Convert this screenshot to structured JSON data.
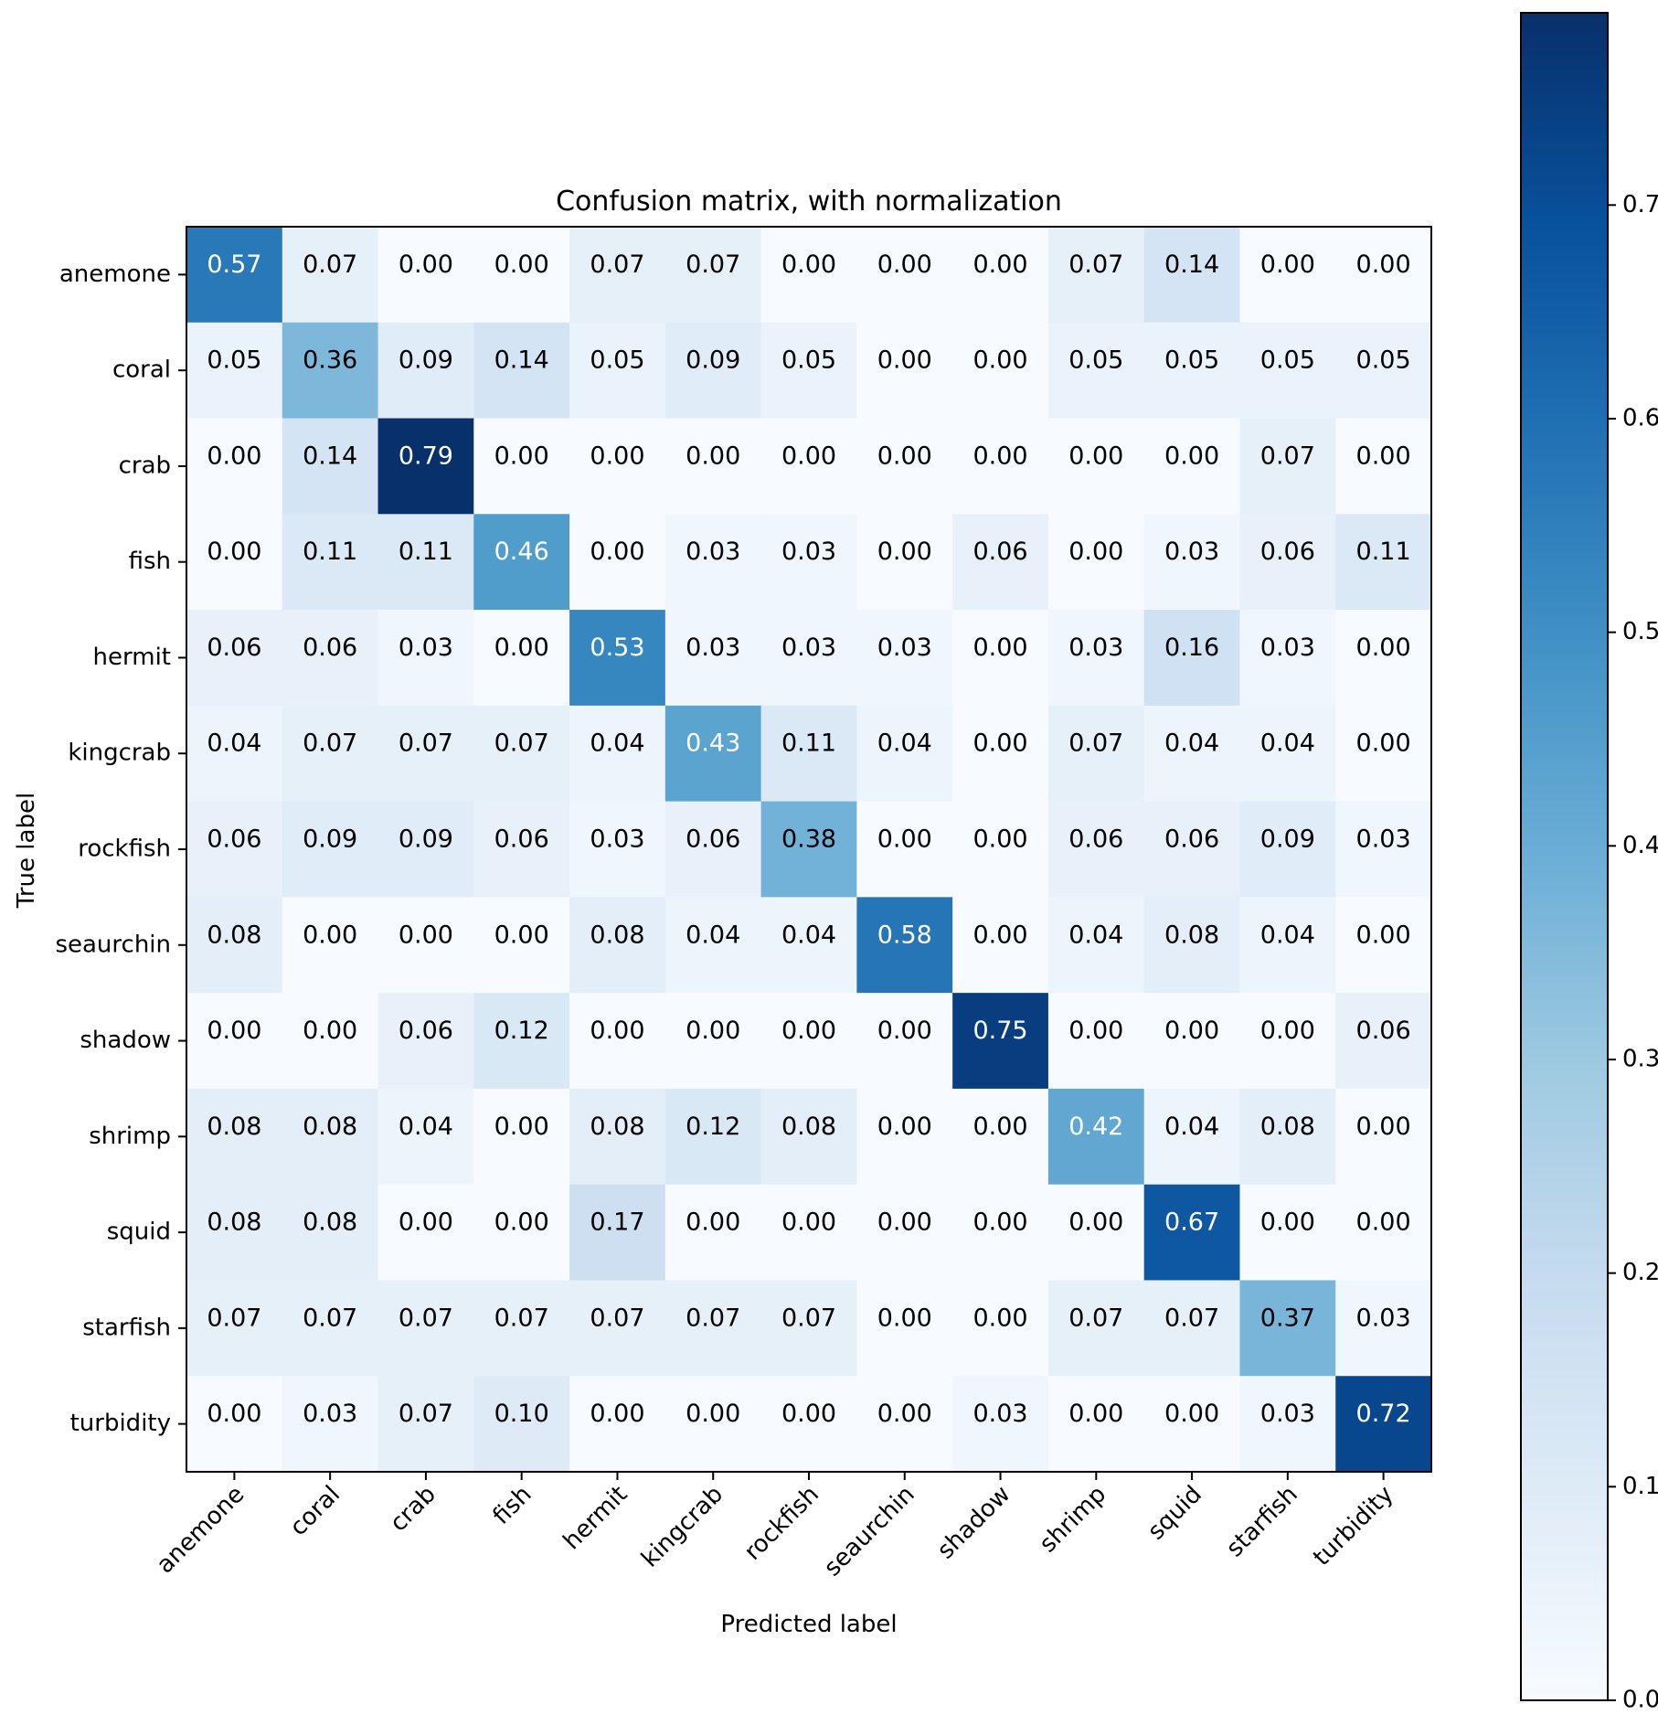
{
  "chart_data": {
    "type": "heatmap",
    "title": "Confusion matrix, with normalization",
    "xlabel": "Predicted label",
    "ylabel": "True label",
    "labels": [
      "anemone",
      "coral",
      "crab",
      "fish",
      "hermit",
      "kingcrab",
      "rockfish",
      "seaurchin",
      "shadow",
      "shrimp",
      "squid",
      "starfish",
      "turbidity"
    ],
    "values": [
      [
        0.57,
        0.07,
        0.0,
        0.0,
        0.07,
        0.07,
        0.0,
        0.0,
        0.0,
        0.07,
        0.14,
        0.0,
        0.0
      ],
      [
        0.05,
        0.36,
        0.09,
        0.14,
        0.05,
        0.09,
        0.05,
        0.0,
        0.0,
        0.05,
        0.05,
        0.05,
        0.05
      ],
      [
        0.0,
        0.14,
        0.79,
        0.0,
        0.0,
        0.0,
        0.0,
        0.0,
        0.0,
        0.0,
        0.0,
        0.07,
        0.0
      ],
      [
        0.0,
        0.11,
        0.11,
        0.46,
        0.0,
        0.03,
        0.03,
        0.0,
        0.06,
        0.0,
        0.03,
        0.06,
        0.11
      ],
      [
        0.06,
        0.06,
        0.03,
        0.0,
        0.53,
        0.03,
        0.03,
        0.03,
        0.0,
        0.03,
        0.16,
        0.03,
        0.0
      ],
      [
        0.04,
        0.07,
        0.07,
        0.07,
        0.04,
        0.43,
        0.11,
        0.04,
        0.0,
        0.07,
        0.04,
        0.04,
        0.0
      ],
      [
        0.06,
        0.09,
        0.09,
        0.06,
        0.03,
        0.06,
        0.38,
        0.0,
        0.0,
        0.06,
        0.06,
        0.09,
        0.03
      ],
      [
        0.08,
        0.0,
        0.0,
        0.0,
        0.08,
        0.04,
        0.04,
        0.58,
        0.0,
        0.04,
        0.08,
        0.04,
        0.0
      ],
      [
        0.0,
        0.0,
        0.06,
        0.12,
        0.0,
        0.0,
        0.0,
        0.0,
        0.75,
        0.0,
        0.0,
        0.0,
        0.06
      ],
      [
        0.08,
        0.08,
        0.04,
        0.0,
        0.08,
        0.12,
        0.08,
        0.0,
        0.0,
        0.42,
        0.04,
        0.08,
        0.0
      ],
      [
        0.08,
        0.08,
        0.0,
        0.0,
        0.17,
        0.0,
        0.0,
        0.0,
        0.0,
        0.0,
        0.67,
        0.0,
        0.0
      ],
      [
        0.07,
        0.07,
        0.07,
        0.07,
        0.07,
        0.07,
        0.07,
        0.0,
        0.0,
        0.07,
        0.07,
        0.37,
        0.03
      ],
      [
        0.0,
        0.03,
        0.07,
        0.1,
        0.0,
        0.0,
        0.0,
        0.0,
        0.03,
        0.0,
        0.0,
        0.03,
        0.72
      ]
    ],
    "value_range": [
      0,
      0.79
    ],
    "colormap": "Blues",
    "colorbar": {
      "ticks": [
        0.0,
        0.1,
        0.2,
        0.3,
        0.4,
        0.5,
        0.6,
        0.7
      ],
      "tick_labels": [
        "0.0",
        "0.1",
        "0.2",
        "0.3",
        "0.4",
        "0.5",
        "0.6",
        "0.7"
      ]
    },
    "text_color_dark": "#000000",
    "text_color_light": "#ffffff"
  }
}
